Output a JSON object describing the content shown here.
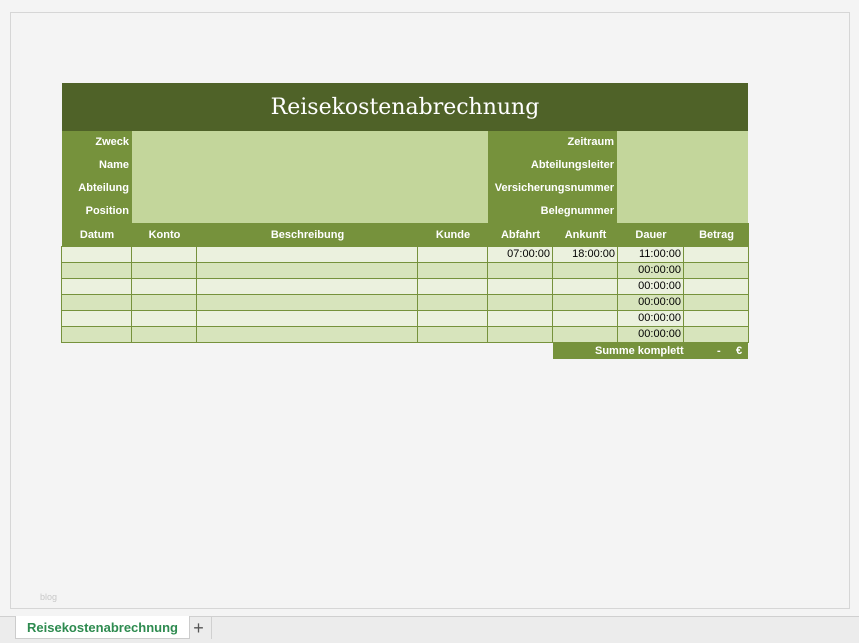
{
  "title": "Reisekostenabrechnung",
  "info_left": [
    "Zweck",
    "Name",
    "Abteilung",
    "Position"
  ],
  "info_right": [
    "Zeitraum",
    "Abteilungsleiter",
    "Versicherungsnummer",
    "Belegnummer"
  ],
  "columns": [
    "Datum",
    "Konto",
    "Beschreibung",
    "Kunde",
    "Abfahrt",
    "Ankunft",
    "Dauer",
    "Betrag"
  ],
  "rows": [
    [
      "",
      "",
      "",
      "",
      "07:00:00",
      "18:00:00",
      "11:00:00",
      ""
    ],
    [
      "",
      "",
      "",
      "",
      "",
      "",
      "00:00:00",
      ""
    ],
    [
      "",
      "",
      "",
      "",
      "",
      "",
      "00:00:00",
      ""
    ],
    [
      "",
      "",
      "",
      "",
      "",
      "",
      "00:00:00",
      ""
    ],
    [
      "",
      "",
      "",
      "",
      "",
      "",
      "00:00:00",
      ""
    ],
    [
      "",
      "",
      "",
      "",
      "",
      "",
      "00:00:00",
      ""
    ]
  ],
  "summary": {
    "label": "Summe komplett",
    "value": "-",
    "currency": "€"
  },
  "watermark": "blog",
  "sheet_tabs": [
    {
      "label": "Reisekostenabrechnung",
      "active": true
    }
  ],
  "add_sheet": "+",
  "colors": {
    "title_bg": "#4f6228",
    "header_bg": "#76923c",
    "input_bg": "#c3d69b",
    "row_light": "#ebf1de",
    "row_dark": "#d7e4bc",
    "tab_text": "#2e8b50"
  }
}
